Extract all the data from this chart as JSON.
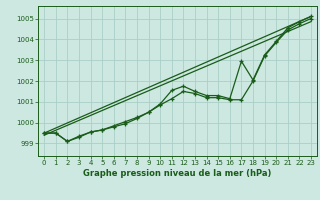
{
  "title": "Graphe pression niveau de la mer (hPa)",
  "bg_color": "#cce8e0",
  "grid_color": "#aacfc8",
  "line_color": "#1a5c1a",
  "xlim": [
    -0.5,
    23.5
  ],
  "ylim": [
    998.4,
    1005.6
  ],
  "yticks": [
    999,
    1000,
    1001,
    1002,
    1003,
    1004,
    1005
  ],
  "xticks": [
    0,
    1,
    2,
    3,
    4,
    5,
    6,
    7,
    8,
    9,
    10,
    11,
    12,
    13,
    14,
    15,
    16,
    17,
    18,
    19,
    20,
    21,
    22,
    23
  ],
  "smooth_line1_x": [
    0,
    23
  ],
  "smooth_line1_y": [
    999.5,
    1005.1
  ],
  "smooth_line2_x": [
    0,
    23
  ],
  "smooth_line2_y": [
    999.4,
    1004.85
  ],
  "data_line_x": [
    0,
    1,
    2,
    3,
    4,
    5,
    6,
    7,
    8,
    9,
    10,
    11,
    12,
    13,
    14,
    15,
    16,
    17,
    18,
    19,
    20,
    21,
    22,
    23
  ],
  "data_line_y": [
    999.5,
    999.5,
    999.1,
    999.3,
    999.55,
    999.65,
    999.8,
    999.95,
    1000.2,
    1000.5,
    1000.9,
    1001.55,
    1001.75,
    1001.5,
    1001.3,
    1001.3,
    1001.15,
    1002.95,
    1002.05,
    1003.25,
    1003.9,
    1004.55,
    1004.85,
    1005.1
  ],
  "data_line2_x": [
    0,
    1,
    2,
    3,
    4,
    5,
    6,
    7,
    8,
    9,
    10,
    11,
    12,
    13,
    14,
    15,
    16,
    17,
    18,
    19,
    20,
    21,
    22,
    23
  ],
  "data_line2_y": [
    999.5,
    999.5,
    999.1,
    999.35,
    999.55,
    999.65,
    999.85,
    1000.05,
    1000.25,
    1000.5,
    1000.85,
    1001.15,
    1001.5,
    1001.4,
    1001.2,
    1001.2,
    1001.1,
    1001.1,
    1002.0,
    1003.2,
    1003.85,
    1004.45,
    1004.75,
    1005.0
  ]
}
